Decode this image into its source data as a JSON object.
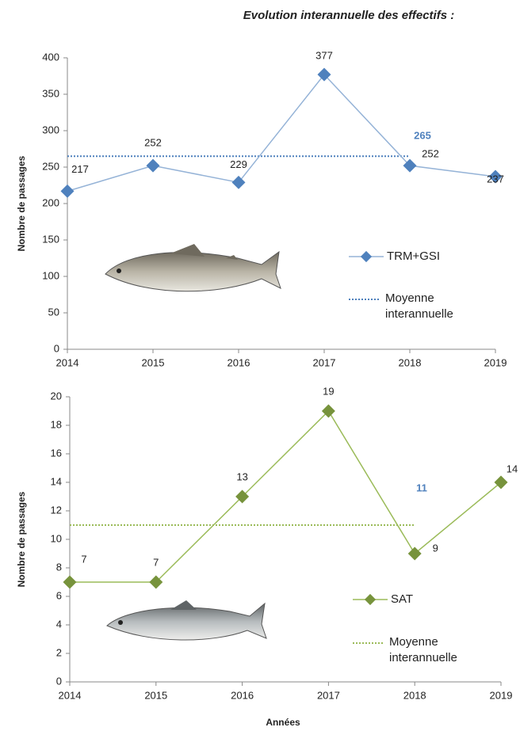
{
  "chart_data": [
    {
      "type": "line",
      "title": "Evolution interannuelle des effectifs :",
      "y_label": "Nombre de passages",
      "categories": [
        "2014",
        "2015",
        "2016",
        "2017",
        "2018",
        "2019"
      ],
      "series": [
        {
          "name": "TRM+GSI",
          "color": "#4f81bd",
          "line_color": "#95b3d7",
          "values": [
            217,
            252,
            229,
            377,
            252,
            237
          ]
        }
      ],
      "mean": {
        "name": "Moyenne interannuelle",
        "value": 265,
        "color": "#4f81bd"
      },
      "ylim": [
        0,
        400
      ],
      "yticks": [
        0,
        50,
        100,
        150,
        200,
        250,
        300,
        350,
        400
      ]
    },
    {
      "type": "line",
      "y_label": "Nombre de passages",
      "x_label": "Années",
      "categories": [
        "2014",
        "2015",
        "2016",
        "2017",
        "2018",
        "2019"
      ],
      "series": [
        {
          "name": "SAT",
          "color": "#77933c",
          "line_color": "#9bbb59",
          "values": [
            7,
            7,
            13,
            19,
            9,
            14
          ]
        }
      ],
      "mean": {
        "name": "Moyenne interannuelle",
        "value": 11,
        "color": "#9bbb59",
        "label_color": "#4f81bd"
      },
      "ylim": [
        0,
        20
      ],
      "yticks": [
        0,
        2,
        4,
        6,
        8,
        10,
        12,
        14,
        16,
        18,
        20
      ]
    }
  ]
}
